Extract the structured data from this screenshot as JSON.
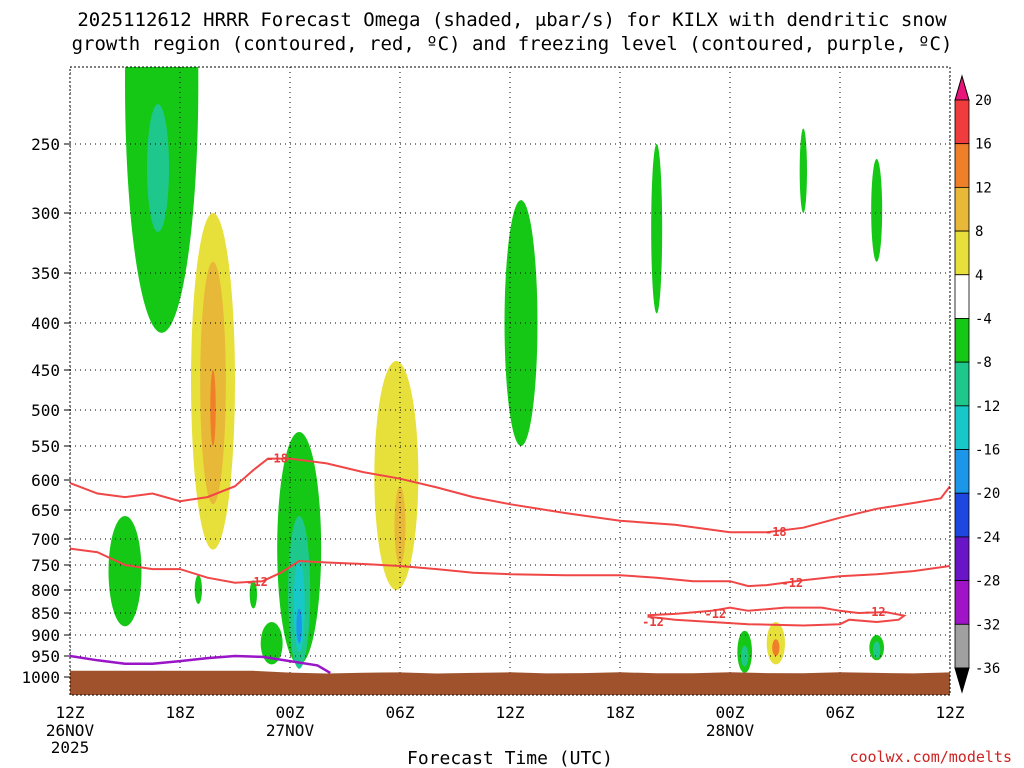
{
  "chart_data": {
    "type": "heatmap",
    "title_lines": [
      "2025112612 HRRR Forecast Omega (shaded, μbar/s) for KILX with dendritic snow",
      "growth region (contoured, red, ºC) and freezing level (contoured, purple, ºC)"
    ],
    "xlabel": "Forecast Time (UTC)",
    "credit": "coolwx.com/modelts",
    "x_range_hours": [
      0,
      48
    ],
    "x_ticks": [
      {
        "h": 0,
        "label": "12Z",
        "sub": [
          "26NOV",
          "2025"
        ]
      },
      {
        "h": 6,
        "label": "18Z",
        "sub": []
      },
      {
        "h": 12,
        "label": "00Z",
        "sub": [
          "27NOV"
        ]
      },
      {
        "h": 18,
        "label": "06Z",
        "sub": []
      },
      {
        "h": 24,
        "label": "12Z",
        "sub": []
      },
      {
        "h": 30,
        "label": "18Z",
        "sub": []
      },
      {
        "h": 36,
        "label": "00Z",
        "sub": [
          "28NOV"
        ]
      },
      {
        "h": 42,
        "label": "06Z",
        "sub": []
      },
      {
        "h": 48,
        "label": "12Z",
        "sub": []
      }
    ],
    "y_axis": "pressure (hPa)",
    "y_ticks": [
      250,
      300,
      350,
      400,
      450,
      500,
      550,
      600,
      650,
      700,
      750,
      800,
      850,
      900,
      950,
      1000
    ],
    "grid": true,
    "colorbar": {
      "levels": [
        20,
        16,
        12,
        8,
        4,
        -4,
        -8,
        -12,
        -16,
        -20,
        -24,
        -28,
        -32,
        -36
      ],
      "colors": [
        "#e8147a",
        "#f03c3c",
        "#f07f2a",
        "#e8b838",
        "#e8e03a",
        "#ffffff",
        "#16c816",
        "#1ec88c",
        "#18c8c8",
        "#1c96e8",
        "#1e46e0",
        "#6a14c8",
        "#a014c8",
        "#a0a0a0",
        "#000000"
      ]
    },
    "colors": {
      "ground": "#a0522d",
      "dgz_contour": "#f04646",
      "freezing_contour": "#9a14c8"
    },
    "contour_labels": [
      "-18",
      "-12",
      "-12",
      "-18",
      "-12",
      "-12",
      "-12"
    ],
    "dgz_contours": [
      {
        "label": "-18",
        "points": [
          [
            0,
            605
          ],
          [
            1.5,
            622
          ],
          [
            3,
            628
          ],
          [
            4.5,
            622
          ],
          [
            6,
            635
          ],
          [
            7.5,
            628
          ],
          [
            9,
            610
          ],
          [
            10,
            585
          ],
          [
            10.8,
            568
          ],
          [
            12,
            568
          ],
          [
            14,
            575
          ],
          [
            16,
            588
          ],
          [
            18,
            598
          ],
          [
            20,
            612
          ],
          [
            22,
            628
          ],
          [
            24,
            640
          ],
          [
            27,
            655
          ],
          [
            30,
            668
          ],
          [
            33,
            675
          ],
          [
            36,
            688
          ],
          [
            38,
            688
          ],
          [
            40,
            680
          ],
          [
            42,
            663
          ],
          [
            44,
            648
          ],
          [
            46,
            638
          ],
          [
            47.5,
            630
          ],
          [
            48,
            610
          ]
        ]
      },
      {
        "label": "-12",
        "points": [
          [
            0,
            718
          ],
          [
            1.5,
            725
          ],
          [
            3,
            750
          ],
          [
            4.5,
            758
          ],
          [
            6,
            758
          ],
          [
            7.5,
            775
          ],
          [
            9,
            785
          ],
          [
            10.5,
            782
          ],
          [
            11.5,
            765
          ],
          [
            12.5,
            742
          ],
          [
            14,
            745
          ],
          [
            16,
            748
          ],
          [
            18,
            752
          ],
          [
            20,
            758
          ],
          [
            22,
            765
          ],
          [
            24,
            768
          ],
          [
            27,
            770
          ],
          [
            30,
            770
          ],
          [
            32,
            775
          ],
          [
            34,
            782
          ],
          [
            36,
            782
          ],
          [
            37,
            792
          ],
          [
            38,
            790
          ],
          [
            40,
            780
          ],
          [
            42,
            772
          ],
          [
            44,
            768
          ],
          [
            46,
            762
          ],
          [
            48,
            752
          ]
        ]
      },
      {
        "label": "-12",
        "points": [
          [
            31.5,
            855
          ],
          [
            33,
            852
          ],
          [
            35,
            845
          ],
          [
            36,
            838
          ],
          [
            37,
            845
          ],
          [
            39,
            838
          ],
          [
            41,
            838
          ],
          [
            42,
            845
          ],
          [
            43,
            850
          ],
          [
            44.5,
            848
          ],
          [
            45.5,
            856
          ],
          [
            45.2,
            865
          ],
          [
            44,
            870
          ],
          [
            42.5,
            865
          ],
          [
            42,
            875
          ],
          [
            40,
            878
          ],
          [
            37,
            875
          ],
          [
            35,
            870
          ],
          [
            33,
            865
          ],
          [
            31.5,
            858
          ]
        ]
      }
    ],
    "freezing_contour": {
      "points": [
        [
          0,
          950
        ],
        [
          1.5,
          960
        ],
        [
          3,
          968
        ],
        [
          4.5,
          968
        ],
        [
          6,
          962
        ],
        [
          7.5,
          955
        ],
        [
          9,
          950
        ],
        [
          10.5,
          952
        ],
        [
          12,
          962
        ],
        [
          13.5,
          972
        ],
        [
          14.2,
          990
        ]
      ]
    },
    "omega_regions": [
      {
        "level": 4,
        "center": [
          1.2,
          290
        ],
        "half": [
          1.0,
          180
        ]
      },
      {
        "level": 4,
        "center": [
          2.0,
          550
        ],
        "half": [
          1.6,
          300
        ]
      },
      {
        "level": 4,
        "center": [
          8.0,
          510
        ],
        "half": [
          2.2,
          280
        ]
      },
      {
        "level": 4,
        "center": [
          11.0,
          700
        ],
        "half": [
          0.4,
          110
        ]
      },
      {
        "level": 4,
        "center": [
          12.9,
          215
        ],
        "half": [
          0.4,
          150
        ]
      },
      {
        "level": 4,
        "center": [
          13.0,
          300
        ],
        "half": [
          0.4,
          50
        ]
      },
      {
        "level": 4,
        "center": [
          15.0,
          830
        ],
        "half": [
          0.6,
          110
        ]
      },
      {
        "level": 4,
        "center": [
          17.5,
          480
        ],
        "half": [
          2.0,
          390
        ]
      },
      {
        "level": 4,
        "center": [
          20.2,
          930
        ],
        "half": [
          0.4,
          40
        ]
      },
      {
        "level": 4,
        "center": [
          24.2,
          880
        ],
        "half": [
          1.0,
          70
        ]
      },
      {
        "level": 4,
        "center": [
          28.5,
          300
        ],
        "half": [
          1.2,
          130
        ]
      },
      {
        "level": 4,
        "center": [
          32.5,
          820
        ],
        "half": [
          1.0,
          200
        ]
      },
      {
        "level": 4,
        "center": [
          33.5,
          490
        ],
        "half": [
          1.2,
          460
        ]
      },
      {
        "level": 4,
        "center": [
          36.5,
          920
        ],
        "half": [
          2.0,
          80
        ]
      },
      {
        "level": 4,
        "center": [
          38.5,
          440
        ],
        "half": [
          1.2,
          560
        ]
      },
      {
        "level": 4,
        "center": [
          42.5,
          860
        ],
        "half": [
          2.5,
          100
        ]
      },
      {
        "level": 4,
        "center": [
          48.0,
          500
        ],
        "half": [
          0.6,
          80
        ]
      },
      {
        "level": 4,
        "center": [
          41.5,
          550
        ],
        "half": [
          1.8,
          250
        ]
      },
      {
        "level": 8,
        "center": [
          7.8,
          510
        ],
        "half": [
          1.2,
          210
        ]
      },
      {
        "level": 8,
        "center": [
          17.8,
          620
        ],
        "half": [
          1.2,
          180
        ]
      },
      {
        "level": 8,
        "center": [
          38.5,
          920
        ],
        "half": [
          0.5,
          50
        ]
      },
      {
        "level": 12,
        "center": [
          7.8,
          490
        ],
        "half": [
          0.7,
          150
        ]
      },
      {
        "level": 12,
        "center": [
          18.0,
          680
        ],
        "half": [
          0.3,
          70
        ]
      },
      {
        "level": 16,
        "center": [
          7.8,
          500
        ],
        "half": [
          0.15,
          50
        ]
      },
      {
        "level": 16,
        "center": [
          38.5,
          930
        ],
        "half": [
          0.2,
          20
        ]
      },
      {
        "level": -4,
        "center": [
          5.0,
          260
        ],
        "half": [
          2.0,
          150
        ]
      },
      {
        "level": -4,
        "center": [
          3.0,
          770
        ],
        "half": [
          0.9,
          110
        ]
      },
      {
        "level": -4,
        "center": [
          7.0,
          800
        ],
        "half": [
          0.2,
          30
        ]
      },
      {
        "level": -4,
        "center": [
          10.0,
          810
        ],
        "half": [
          0.2,
          30
        ]
      },
      {
        "level": -4,
        "center": [
          12.5,
          750
        ],
        "half": [
          1.2,
          220
        ]
      },
      {
        "level": -4,
        "center": [
          11.0,
          920
        ],
        "half": [
          0.6,
          50
        ]
      },
      {
        "level": -4,
        "center": [
          24.6,
          420
        ],
        "half": [
          0.9,
          130
        ]
      },
      {
        "level": -4,
        "center": [
          32.0,
          320
        ],
        "half": [
          0.3,
          70
        ]
      },
      {
        "level": -4,
        "center": [
          36.8,
          940
        ],
        "half": [
          0.4,
          50
        ]
      },
      {
        "level": -4,
        "center": [
          40.0,
          270
        ],
        "half": [
          0.2,
          30
        ]
      },
      {
        "level": -4,
        "center": [
          44.0,
          300
        ],
        "half": [
          0.3,
          40
        ]
      },
      {
        "level": -4,
        "center": [
          44.0,
          930
        ],
        "half": [
          0.4,
          30
        ]
      },
      {
        "level": -8,
        "center": [
          4.8,
          270
        ],
        "half": [
          0.6,
          45
        ]
      },
      {
        "level": -8,
        "center": [
          12.5,
          820
        ],
        "half": [
          0.6,
          160
        ]
      },
      {
        "level": -8,
        "center": [
          36.8,
          950
        ],
        "half": [
          0.2,
          25
        ]
      },
      {
        "level": -8,
        "center": [
          44.0,
          935
        ],
        "half": [
          0.2,
          20
        ]
      },
      {
        "level": -12,
        "center": [
          12.5,
          840
        ],
        "half": [
          0.3,
          100
        ]
      },
      {
        "level": -16,
        "center": [
          12.5,
          880
        ],
        "half": [
          0.15,
          40
        ]
      }
    ]
  }
}
